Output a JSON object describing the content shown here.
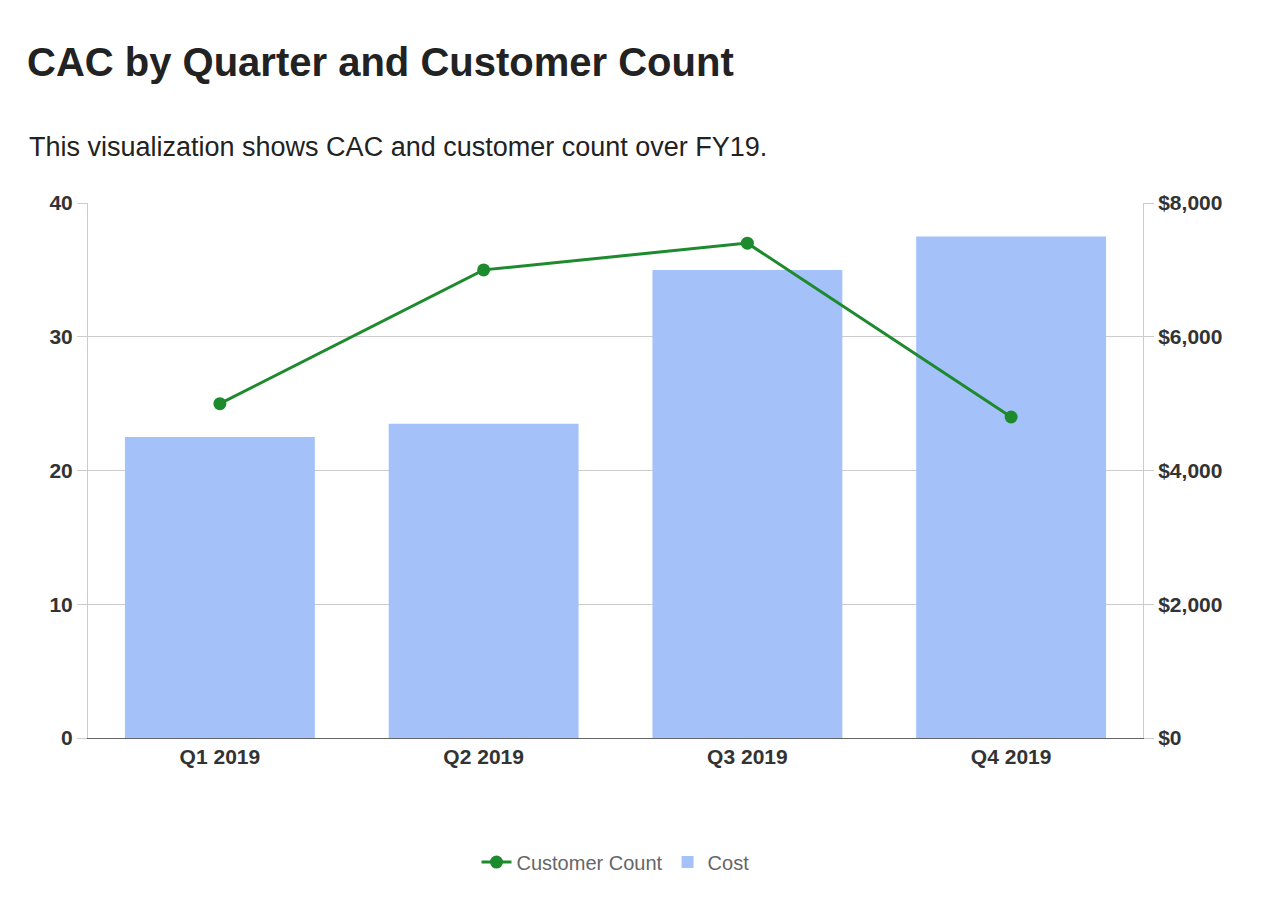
{
  "chart_data": {
    "type": "bar",
    "title": "CAC by Quarter and Customer Count",
    "subtitle": "This visualization shows CAC and customer count over FY19.",
    "categories": [
      "Q1 2019",
      "Q2 2019",
      "Q3 2019",
      "Q4 2019"
    ],
    "series": [
      {
        "name": "Customer Count",
        "type": "line",
        "color": "#1e8a2e",
        "marker": "circle",
        "values": [
          25,
          35,
          37,
          24
        ]
      },
      {
        "name": "Cost",
        "type": "bar",
        "color": "#a4c2f9",
        "axis": "y2",
        "values": [
          4500,
          4700,
          7000,
          7500
        ]
      }
    ],
    "ylim": [
      0,
      40
    ],
    "yticks": [
      0,
      10,
      20,
      30,
      40
    ],
    "y2lim": [
      0,
      8000
    ],
    "y2ticks": [
      {
        "value": 0,
        "label": "$0"
      },
      {
        "value": 2000,
        "label": "$2,000"
      },
      {
        "value": 4000,
        "label": "$4,000"
      },
      {
        "value": 6000,
        "label": "$6,000"
      },
      {
        "value": 8000,
        "label": "$8,000"
      }
    ],
    "grid": true,
    "legend": "bottom"
  }
}
